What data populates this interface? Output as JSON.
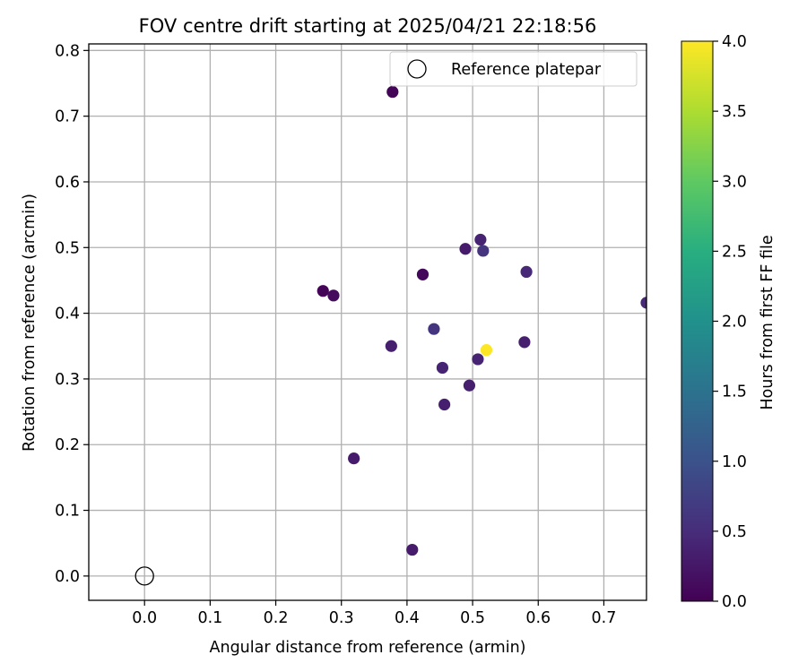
{
  "chart_data": {
    "type": "scatter",
    "title": "FOV centre drift starting at 2025/04/21 22:18:56",
    "xlabel": "Angular distance from reference (armin)",
    "ylabel": "Rotation from reference (arcmin)",
    "xlim": [
      -0.085,
      0.765
    ],
    "ylim": [
      -0.037,
      0.81
    ],
    "x_ticks": [
      "0.0",
      "0.1",
      "0.2",
      "0.3",
      "0.4",
      "0.5",
      "0.6",
      "0.7"
    ],
    "y_ticks": [
      "0.0",
      "0.1",
      "0.2",
      "0.3",
      "0.4",
      "0.5",
      "0.6",
      "0.7",
      "0.8"
    ],
    "grid": true,
    "legend": {
      "placement": "top-right",
      "entries": [
        "Reference platepar"
      ]
    },
    "reference_point": {
      "x": 0.0,
      "y": 0.0,
      "label": "Reference platepar"
    },
    "colorbar": {
      "label": "Hours from first FF file",
      "range": [
        0.0,
        4.0
      ],
      "ticks": [
        "0.0",
        "0.5",
        "1.0",
        "1.5",
        "2.0",
        "2.5",
        "3.0",
        "3.5",
        "4.0"
      ],
      "colormap": "viridis"
    },
    "series": [
      {
        "points": [
          {
            "x": 0.378,
            "y": 0.737,
            "c": 0.05
          },
          {
            "x": 0.272,
            "y": 0.434,
            "c": 0.05
          },
          {
            "x": 0.288,
            "y": 0.427,
            "c": 0.12
          },
          {
            "x": 0.424,
            "y": 0.459,
            "c": 0.08
          },
          {
            "x": 0.489,
            "y": 0.498,
            "c": 0.3
          },
          {
            "x": 0.512,
            "y": 0.512,
            "c": 0.4
          },
          {
            "x": 0.516,
            "y": 0.495,
            "c": 0.6
          },
          {
            "x": 0.582,
            "y": 0.463,
            "c": 0.45
          },
          {
            "x": 0.765,
            "y": 0.416,
            "c": 0.45
          },
          {
            "x": 0.441,
            "y": 0.376,
            "c": 0.6
          },
          {
            "x": 0.376,
            "y": 0.35,
            "c": 0.35
          },
          {
            "x": 0.579,
            "y": 0.356,
            "c": 0.35
          },
          {
            "x": 0.521,
            "y": 0.344,
            "c": 4.0
          },
          {
            "x": 0.508,
            "y": 0.33,
            "c": 0.4
          },
          {
            "x": 0.454,
            "y": 0.317,
            "c": 0.4
          },
          {
            "x": 0.495,
            "y": 0.29,
            "c": 0.35
          },
          {
            "x": 0.457,
            "y": 0.261,
            "c": 0.35
          },
          {
            "x": 0.319,
            "y": 0.179,
            "c": 0.3
          },
          {
            "x": 0.408,
            "y": 0.04,
            "c": 0.3
          }
        ]
      }
    ]
  }
}
